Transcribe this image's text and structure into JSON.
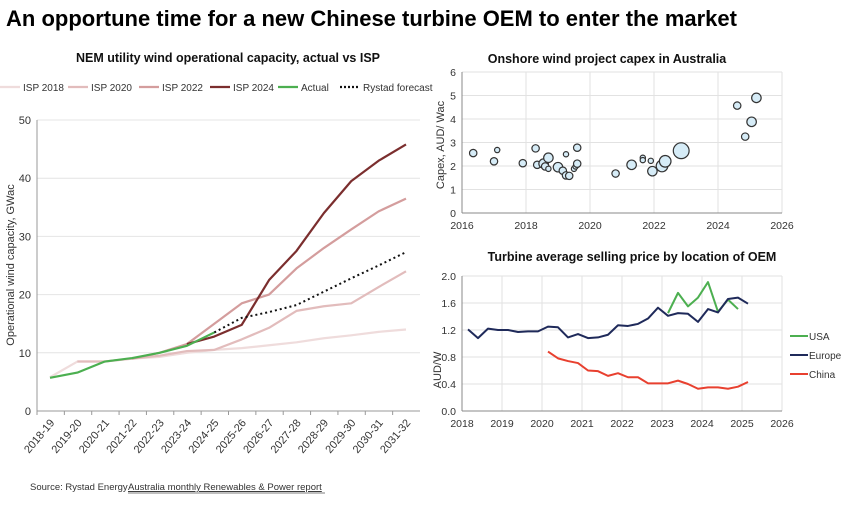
{
  "page": {
    "title": "An opportune time for a new Chinese turbine OEM to enter the market",
    "source_label": "Source: Rystad Energy",
    "source_link": "Australia monthly Renewables & Power report"
  },
  "chart_data": [
    {
      "type": "line",
      "title": "NEM utility wind operational capacity, actual vs ISP",
      "ylabel": "Operational wind capacity,  GWac",
      "xlabel": "",
      "ylim": [
        0,
        50
      ],
      "yticks": [
        0,
        10,
        20,
        30,
        40,
        50
      ],
      "grid": true,
      "legend": "top",
      "categories": [
        "2018-19",
        "2019-20",
        "2020-21",
        "2021-22",
        "2022-23",
        "2023-24",
        "2024-25",
        "2025-26",
        "2026-27",
        "2027-28",
        "2028-29",
        "2029-30",
        "2030-31",
        "2031-32"
      ],
      "series": [
        {
          "name": "ISP 2018",
          "color": "#efdcdc",
          "style": "solid",
          "values": [
            5.8,
            8.5,
            8.5,
            9.0,
            9.3,
            10.0,
            10.5,
            10.8,
            11.3,
            11.8,
            12.5,
            13.0,
            13.6,
            14.0
          ]
        },
        {
          "name": "ISP 2020",
          "color": "#e2bcbc",
          "style": "solid",
          "values": [
            null,
            8.5,
            8.5,
            9.0,
            9.5,
            10.3,
            10.5,
            12.3,
            14.3,
            17.2,
            18.0,
            18.5,
            21.3,
            24.0
          ]
        },
        {
          "name": "ISP 2022",
          "color": "#d49d9d",
          "style": "solid",
          "values": [
            null,
            null,
            null,
            9.0,
            10.0,
            11.5,
            15.0,
            18.5,
            20.0,
            24.5,
            28.0,
            31.2,
            34.3,
            36.5
          ]
        },
        {
          "name": "ISP 2024",
          "color": "#7b2e2e",
          "style": "solid",
          "values": [
            null,
            null,
            null,
            null,
            null,
            11.5,
            12.8,
            14.8,
            22.5,
            27.5,
            34.0,
            39.5,
            43.0,
            45.8
          ]
        },
        {
          "name": "Actual",
          "color": "#4caf50",
          "style": "solid",
          "values": [
            5.7,
            6.6,
            8.5,
            9.1,
            10.0,
            11.2,
            13.5,
            null,
            null,
            null,
            null,
            null,
            null,
            null
          ]
        },
        {
          "name": "Rystad forecast",
          "color": "#111111",
          "style": "dotted",
          "values": [
            null,
            null,
            null,
            null,
            null,
            null,
            13.5,
            16.0,
            17.0,
            18.2,
            20.5,
            22.8,
            25.0,
            27.3
          ]
        }
      ]
    },
    {
      "type": "scatter",
      "title": "Onshore wind project capex in Australia",
      "ylabel": "Capex, AUD/ Wac",
      "xlabel": "",
      "xlim": [
        2016,
        2026
      ],
      "ylim": [
        0,
        6
      ],
      "xticks": [
        "2016",
        "2018",
        "2020",
        "2022",
        "2024",
        "2026"
      ],
      "yticks": [
        "0",
        "1",
        "2",
        "3",
        "4",
        "5",
        "6"
      ],
      "grid": true,
      "marker_color": "#d6ecf7",
      "points": [
        {
          "x": 2016.35,
          "y": 2.55,
          "size": 2
        },
        {
          "x": 2017.0,
          "y": 2.2,
          "size": 2
        },
        {
          "x": 2017.1,
          "y": 2.68,
          "size": 1
        },
        {
          "x": 2017.9,
          "y": 2.12,
          "size": 2
        },
        {
          "x": 2018.3,
          "y": 2.75,
          "size": 2
        },
        {
          "x": 2018.35,
          "y": 2.05,
          "size": 2
        },
        {
          "x": 2018.55,
          "y": 2.1,
          "size": 3
        },
        {
          "x": 2018.6,
          "y": 1.98,
          "size": 2
        },
        {
          "x": 2018.7,
          "y": 2.35,
          "size": 3
        },
        {
          "x": 2018.7,
          "y": 1.88,
          "size": 1
        },
        {
          "x": 2019.0,
          "y": 1.95,
          "size": 3
        },
        {
          "x": 2019.15,
          "y": 1.8,
          "size": 2
        },
        {
          "x": 2019.25,
          "y": 2.5,
          "size": 1
        },
        {
          "x": 2019.25,
          "y": 1.6,
          "size": 2
        },
        {
          "x": 2019.35,
          "y": 1.58,
          "size": 2
        },
        {
          "x": 2019.5,
          "y": 1.88,
          "size": 1
        },
        {
          "x": 2019.55,
          "y": 1.98,
          "size": 1
        },
        {
          "x": 2019.6,
          "y": 2.78,
          "size": 2
        },
        {
          "x": 2019.6,
          "y": 2.1,
          "size": 2
        },
        {
          "x": 2020.8,
          "y": 1.68,
          "size": 2
        },
        {
          "x": 2021.3,
          "y": 2.05,
          "size": 3
        },
        {
          "x": 2021.65,
          "y": 2.35,
          "size": 1
        },
        {
          "x": 2021.65,
          "y": 2.25,
          "size": 1
        },
        {
          "x": 2021.9,
          "y": 2.22,
          "size": 1
        },
        {
          "x": 2021.95,
          "y": 1.78,
          "size": 3
        },
        {
          "x": 2022.25,
          "y": 2.0,
          "size": 4
        },
        {
          "x": 2022.35,
          "y": 2.2,
          "size": 4
        },
        {
          "x": 2022.85,
          "y": 2.65,
          "size": 6
        },
        {
          "x": 2024.6,
          "y": 4.57,
          "size": 2
        },
        {
          "x": 2024.85,
          "y": 3.25,
          "size": 2
        },
        {
          "x": 2025.05,
          "y": 3.88,
          "size": 3
        },
        {
          "x": 2025.2,
          "y": 4.9,
          "size": 3
        }
      ]
    },
    {
      "type": "line",
      "title": "Turbine average selling price by location of OEM",
      "ylabel": "AUD/W",
      "xlabel": "",
      "xlim": [
        2018,
        2026
      ],
      "ylim": [
        0,
        2.0
      ],
      "xticks": [
        "2018",
        "2019",
        "2020",
        "2021",
        "2022",
        "2023",
        "2024",
        "2025",
        "2026"
      ],
      "yticks": [
        "0.0",
        "0.4",
        "0.8",
        "1.2",
        "1.6",
        "2.0"
      ],
      "grid": true,
      "legend": "right",
      "series": [
        {
          "name": "USA",
          "color": "#4caf50",
          "x": [
            2023.15,
            2023.4,
            2023.65,
            2023.9,
            2024.15,
            2024.4,
            2024.65,
            2024.9
          ],
          "values": [
            1.45,
            1.75,
            1.55,
            1.68,
            1.91,
            1.47,
            1.65,
            1.51
          ]
        },
        {
          "name": "Europe",
          "color": "#1f2a5a",
          "x": [
            2018.15,
            2018.4,
            2018.65,
            2018.9,
            2019.15,
            2019.4,
            2019.65,
            2019.9,
            2020.15,
            2020.4,
            2020.65,
            2020.9,
            2021.15,
            2021.4,
            2021.65,
            2021.9,
            2022.15,
            2022.4,
            2022.65,
            2022.9,
            2023.15,
            2023.4,
            2023.65,
            2023.9,
            2024.15,
            2024.4,
            2024.65,
            2024.9,
            2025.15
          ],
          "values": [
            1.21,
            1.08,
            1.22,
            1.2,
            1.2,
            1.17,
            1.18,
            1.18,
            1.25,
            1.24,
            1.09,
            1.14,
            1.08,
            1.09,
            1.13,
            1.27,
            1.26,
            1.29,
            1.37,
            1.53,
            1.41,
            1.45,
            1.44,
            1.32,
            1.51,
            1.46,
            1.66,
            1.68,
            1.59
          ]
        },
        {
          "name": "China",
          "color": "#e8402f",
          "x": [
            2020.15,
            2020.4,
            2020.65,
            2020.9,
            2021.15,
            2021.4,
            2021.65,
            2021.9,
            2022.15,
            2022.4,
            2022.65,
            2022.9,
            2023.15,
            2023.4,
            2023.65,
            2023.9,
            2024.15,
            2024.4,
            2024.65,
            2024.9,
            2025.15
          ],
          "values": [
            0.88,
            0.78,
            0.74,
            0.71,
            0.6,
            0.59,
            0.52,
            0.56,
            0.5,
            0.5,
            0.41,
            0.41,
            0.41,
            0.45,
            0.4,
            0.33,
            0.35,
            0.35,
            0.33,
            0.36,
            0.43
          ]
        }
      ]
    }
  ]
}
